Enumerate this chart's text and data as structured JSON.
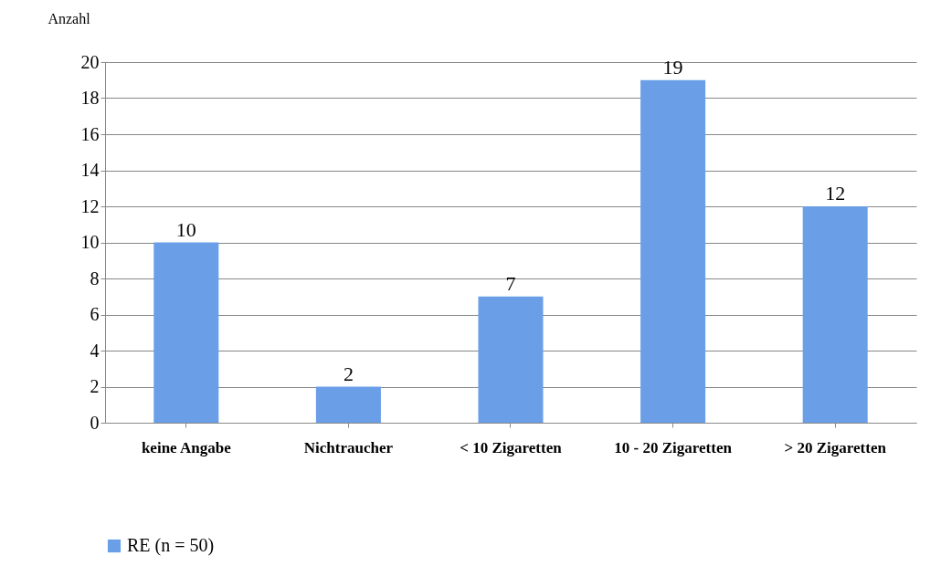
{
  "chart_data": {
    "type": "bar",
    "ylabel": "Anzahl",
    "categories": [
      "keine Angabe",
      "Nichtraucher",
      "< 10 Zigaretten",
      "10 - 20 Zigaretten",
      "> 20 Zigaretten"
    ],
    "series": [
      {
        "name": "RE (n = 50)",
        "color": "#6a9fe8",
        "values": [
          10,
          2,
          7,
          19,
          12
        ]
      }
    ],
    "ylim": [
      0,
      20
    ],
    "yticks": [
      0,
      2,
      4,
      6,
      8,
      10,
      12,
      14,
      16,
      18,
      20
    ],
    "grid": "y",
    "legend": "bottom",
    "data_labels": true
  }
}
